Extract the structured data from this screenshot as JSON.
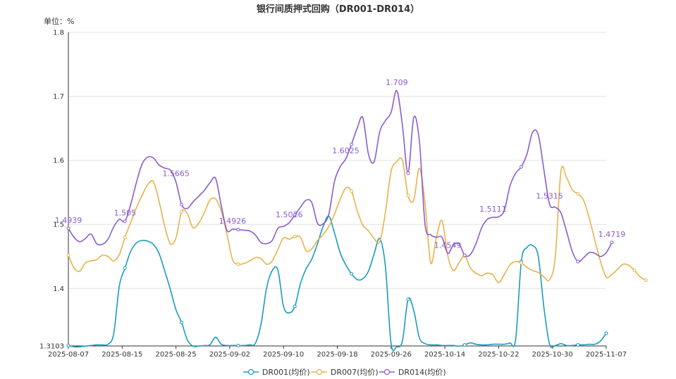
{
  "chart_data": {
    "type": "line",
    "title": "银行间质押式回购（DR001-DR014）",
    "unit_label": "单位：%",
    "ylim": [
      1.3103,
      1.8
    ],
    "y_ticks": [
      "1.3103",
      "1.4",
      "1.5",
      "1.6",
      "1.7",
      "1.8"
    ],
    "y_tick_values": [
      1.3103,
      1.4,
      1.5,
      1.6,
      1.7,
      1.8
    ],
    "grid": true,
    "legend_position": "bottom",
    "x_ticks": [
      "2025-08-07",
      "2025-08-15",
      "2025-08-25",
      "2025-09-02",
      "2025-09-10",
      "2025-09-18",
      "2025-09-26",
      "2025-10-14",
      "2025-10-22",
      "2025-10-30",
      "2025-11-07"
    ],
    "series": [
      {
        "name": "DR001(均价)",
        "color": "#1a9bbf",
        "values": [
          1.311,
          1.309,
          1.309,
          1.31,
          1.311,
          1.312,
          1.312,
          1.313,
          1.329,
          1.404,
          1.432,
          1.458,
          1.471,
          1.475,
          1.474,
          1.469,
          1.455,
          1.428,
          1.399,
          1.367,
          1.347,
          1.32,
          1.31,
          1.31,
          1.311,
          1.312,
          1.324,
          1.313,
          1.311,
          1.311,
          1.311,
          1.311,
          1.312,
          1.314,
          1.343,
          1.4,
          1.428,
          1.429,
          1.372,
          1.362,
          1.372,
          1.408,
          1.431,
          1.446,
          1.47,
          1.497,
          1.513,
          1.487,
          1.456,
          1.437,
          1.423,
          1.414,
          1.415,
          1.427,
          1.454,
          1.478,
          1.434,
          1.314,
          1.309,
          1.318,
          1.383,
          1.366,
          1.323,
          1.314,
          1.312,
          1.312,
          1.311,
          1.311,
          1.311,
          1.31,
          1.312,
          1.315,
          1.313,
          1.312,
          1.312,
          1.313,
          1.313,
          1.313,
          1.315,
          1.32,
          1.442,
          1.464,
          1.467,
          1.45,
          1.37,
          1.313,
          1.311,
          1.314,
          1.311,
          1.311,
          1.312,
          1.312,
          1.313,
          1.313,
          1.318,
          1.33
        ],
        "point_labels": {}
      },
      {
        "name": "DR007(均价)",
        "color": "#e6b24a",
        "values": [
          1.452,
          1.432,
          1.427,
          1.44,
          1.443,
          1.445,
          1.452,
          1.45,
          1.443,
          1.453,
          1.48,
          1.503,
          1.526,
          1.545,
          1.562,
          1.567,
          1.537,
          1.498,
          1.47,
          1.479,
          1.52,
          1.517,
          1.495,
          1.502,
          1.518,
          1.538,
          1.54,
          1.521,
          1.485,
          1.445,
          1.438,
          1.439,
          1.443,
          1.448,
          1.447,
          1.438,
          1.443,
          1.461,
          1.479,
          1.477,
          1.481,
          1.48,
          1.459,
          1.462,
          1.475,
          1.484,
          1.497,
          1.516,
          1.539,
          1.557,
          1.552,
          1.522,
          1.499,
          1.49,
          1.478,
          1.473,
          1.519,
          1.583,
          1.598,
          1.6,
          1.545,
          1.538,
          1.588,
          1.533,
          1.44,
          1.48,
          1.506,
          1.452,
          1.428,
          1.44,
          1.451,
          1.432,
          1.424,
          1.42,
          1.424,
          1.421,
          1.409,
          1.422,
          1.437,
          1.442,
          1.44,
          1.433,
          1.428,
          1.425,
          1.418,
          1.414,
          1.449,
          1.583,
          1.573,
          1.554,
          1.548,
          1.538,
          1.51,
          1.475,
          1.442,
          1.418,
          1.422,
          1.43,
          1.438,
          1.436,
          1.428,
          1.418,
          1.413
        ],
        "point_labels": {}
      },
      {
        "name": "DR014(均价)",
        "color": "#8a5cd1",
        "values": [
          1.4939,
          1.48,
          1.473,
          1.478,
          1.485,
          1.47,
          1.469,
          1.477,
          1.496,
          1.508,
          1.505,
          1.531,
          1.565,
          1.594,
          1.605,
          1.604,
          1.593,
          1.588,
          1.585,
          1.5665,
          1.531,
          1.525,
          1.535,
          1.544,
          1.553,
          1.565,
          1.572,
          1.53,
          1.491,
          1.4926,
          1.492,
          1.491,
          1.49,
          1.484,
          1.472,
          1.47,
          1.475,
          1.494,
          1.497,
          1.5026,
          1.515,
          1.527,
          1.538,
          1.534,
          1.502,
          1.501,
          1.516,
          1.567,
          1.59,
          1.6025,
          1.625,
          1.65,
          1.667,
          1.61,
          1.598,
          1.645,
          1.662,
          1.675,
          1.709,
          1.655,
          1.58,
          1.667,
          1.63,
          1.5,
          1.484,
          1.48,
          1.48,
          1.4549,
          1.468,
          1.47,
          1.452,
          1.453,
          1.47,
          1.495,
          1.508,
          1.5111,
          1.512,
          1.522,
          1.56,
          1.58,
          1.59,
          1.61,
          1.644,
          1.64,
          1.585,
          1.5315,
          1.527,
          1.518,
          1.489,
          1.458,
          1.442,
          1.448,
          1.456,
          1.455,
          1.45,
          1.456,
          1.4719
        ],
        "point_labels": {
          "0": "1.4939",
          "10": "1.505",
          "19": "1.5665",
          "29": "1.4926",
          "39": "1.5026",
          "49": "1.6025",
          "58": "1.709",
          "67": "1.4549",
          "75": "1.5111",
          "85": "1.5315",
          "96": "1.4719"
        }
      }
    ],
    "marker_every": 10
  }
}
